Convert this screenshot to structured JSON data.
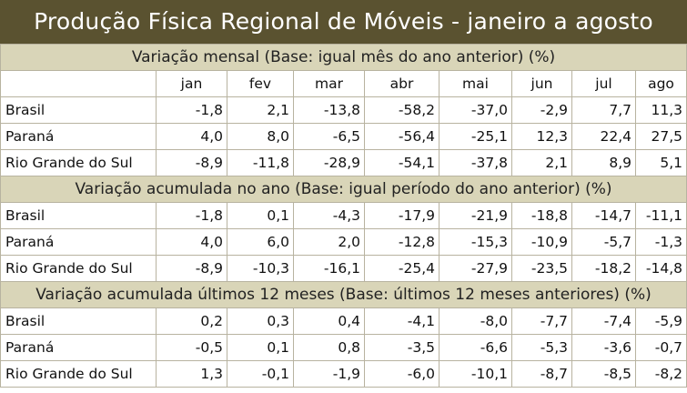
{
  "title": "Produção Física Regional de Móveis - janeiro a agosto",
  "months": [
    "jan",
    "fev",
    "mar",
    "abr",
    "mai",
    "jun",
    "jul",
    "ago"
  ],
  "sections": [
    {
      "heading": "Variação mensal (Base: igual mês do ano anterior) (%)",
      "rows": [
        {
          "label": "Brasil",
          "values": [
            "-1,8",
            "2,1",
            "-13,8",
            "-58,2",
            "-37,0",
            "-2,9",
            "7,7",
            "11,3"
          ]
        },
        {
          "label": "Paraná",
          "values": [
            "4,0",
            "8,0",
            "-6,5",
            "-56,4",
            "-25,1",
            "12,3",
            "22,4",
            "27,5"
          ]
        },
        {
          "label": "Rio Grande do Sul",
          "values": [
            "-8,9",
            "-11,8",
            "-28,9",
            "-54,1",
            "-37,8",
            "2,1",
            "8,9",
            "5,1"
          ]
        }
      ]
    },
    {
      "heading": "Variação acumulada no ano (Base: igual período do ano anterior) (%)",
      "rows": [
        {
          "label": "Brasil",
          "values": [
            "-1,8",
            "0,1",
            "-4,3",
            "-17,9",
            "-21,9",
            "-18,8",
            "-14,7",
            "-11,1"
          ]
        },
        {
          "label": "Paraná",
          "values": [
            "4,0",
            "6,0",
            "2,0",
            "-12,8",
            "-15,3",
            "-10,9",
            "-5,7",
            "-1,3"
          ]
        },
        {
          "label": "Rio Grande do Sul",
          "values": [
            "-8,9",
            "-10,3",
            "-16,1",
            "-25,4",
            "-27,9",
            "-23,5",
            "-18,2",
            "-14,8"
          ]
        }
      ]
    },
    {
      "heading": "Variação acumulada últimos 12 meses (Base: últimos 12 meses anteriores) (%)",
      "rows": [
        {
          "label": "Brasil",
          "values": [
            "0,2",
            "0,3",
            "0,4",
            "-4,1",
            "-8,0",
            "-7,7",
            "-7,4",
            "-5,9"
          ]
        },
        {
          "label": "Paraná",
          "values": [
            "-0,5",
            "0,1",
            "0,8",
            "-3,5",
            "-6,6",
            "-5,3",
            "-3,6",
            "-0,7"
          ]
        },
        {
          "label": "Rio Grande do Sul",
          "values": [
            "1,3",
            "-0,1",
            "-1,9",
            "-6,0",
            "-10,1",
            "-8,7",
            "-8,5",
            "-8,2"
          ]
        }
      ]
    }
  ],
  "colors": {
    "title_bg": "#5a5230",
    "section_bg": "#d9d5b8",
    "border": "#b8b3a0"
  }
}
